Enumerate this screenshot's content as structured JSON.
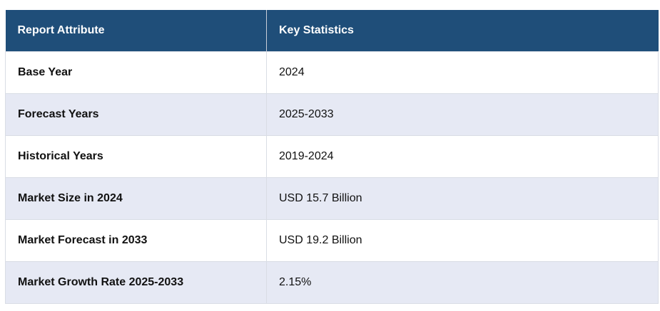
{
  "table": {
    "headers": [
      "Report Attribute",
      "Key Statistics"
    ],
    "rows": [
      {
        "attribute": "Base Year",
        "value": "2024"
      },
      {
        "attribute": "Forecast Years",
        "value": "2025-2033"
      },
      {
        "attribute": "Historical Years",
        "value": "2019-2024"
      },
      {
        "attribute": "Market Size in 2024",
        "value": "USD 15.7 Billion"
      },
      {
        "attribute": "Market Forecast in 2033",
        "value": "USD 19.2 Billion"
      },
      {
        "attribute": "Market Growth Rate 2025-2033",
        "value": "2.15%"
      }
    ]
  },
  "colors": {
    "header_bg": "#1f4e79",
    "header_text": "#ffffff",
    "row_alt_bg": "#e6e9f4",
    "row_bg": "#ffffff"
  }
}
